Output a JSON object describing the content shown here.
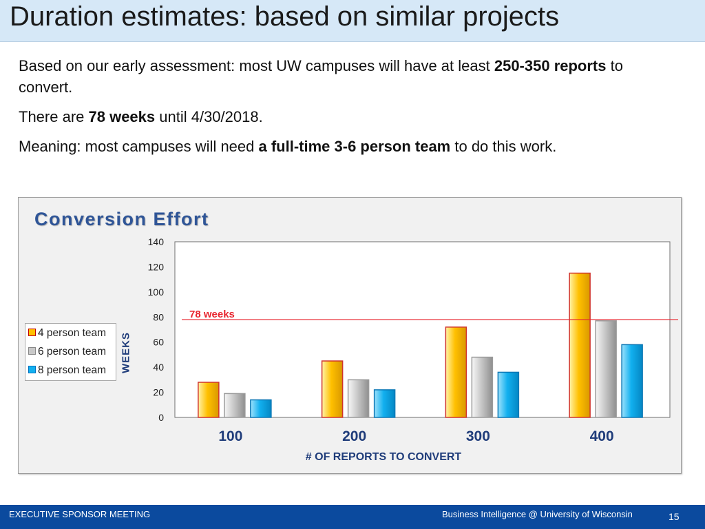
{
  "slide": {
    "title": "Duration estimates: based on similar projects",
    "para1": {
      "pre": "Based on our early assessment: most UW campuses will have at least ",
      "bold": "250-350 reports",
      "post": " to convert."
    },
    "para2": {
      "pre": "There are ",
      "bold": "78 weeks",
      "post": " until 4/30/2018."
    },
    "para3": {
      "pre": "Meaning: most campuses will need ",
      "bold": "a full-time 3-6 person team",
      "post": " to do this work."
    }
  },
  "chart_data": {
    "type": "bar",
    "title": "Conversion Effort",
    "xlabel": "# OF REPORTS TO CONVERT",
    "ylabel": "WEEKS",
    "categories": [
      "100",
      "200",
      "300",
      "400"
    ],
    "series": [
      {
        "name": "4 person team",
        "values": [
          28,
          45,
          72,
          115
        ],
        "color": "#ffc000"
      },
      {
        "name": "6 person team",
        "values": [
          19,
          30,
          48,
          77
        ],
        "color": "#c8c8c8"
      },
      {
        "name": "8 person team",
        "values": [
          14,
          22,
          36,
          58
        ],
        "color": "#12b0ef"
      }
    ],
    "ylim": [
      0,
      140
    ],
    "yticks": [
      "0",
      "20",
      "40",
      "60",
      "80",
      "100",
      "120",
      "140"
    ],
    "reference_line": {
      "value": 78,
      "label": "78 weeks",
      "color": "#e8262f"
    },
    "legend_position": "left",
    "grid": false
  },
  "footer": {
    "left": "EXECUTIVE SPONSOR MEETING",
    "right": "Business Intelligence @ University of Wisconsin",
    "page": "15"
  }
}
